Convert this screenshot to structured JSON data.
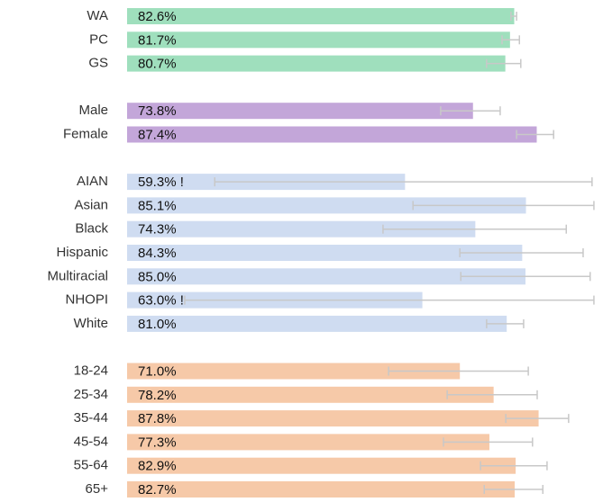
{
  "chart_data": {
    "type": "bar",
    "orientation": "horizontal",
    "xlim": [
      0,
      100
    ],
    "series": [
      {
        "color": "#9fdfbd",
        "categories": [
          "WA",
          "PC",
          "GS"
        ],
        "values": [
          82.6,
          81.7,
          80.7
        ],
        "value_labels": [
          "82.6%",
          "81.7%",
          "80.7%"
        ],
        "ci_low": [
          81.9,
          80.0,
          76.7
        ],
        "ci_high": [
          83.1,
          83.7,
          84.0
        ]
      },
      {
        "color": "#c3a6d9",
        "categories": [
          "Male",
          "Female"
        ],
        "values": [
          73.8,
          87.4
        ],
        "value_labels": [
          "73.8%",
          "87.4%"
        ],
        "ci_low": [
          66.9,
          83.1
        ],
        "ci_high": [
          79.6,
          91.0
        ]
      },
      {
        "color": "#cfdcf1",
        "categories": [
          "AIAN",
          "Asian",
          "Black",
          "Hispanic",
          "Multiracial",
          "NHOPI",
          "White"
        ],
        "values": [
          59.3,
          85.1,
          74.3,
          84.3,
          85.0,
          63.0,
          81.0
        ],
        "value_labels": [
          "59.3% !",
          "85.1%",
          "74.3%",
          "84.3%",
          "85.0%",
          "63.0% !",
          "81.0%"
        ],
        "ci_low": [
          18.7,
          61.0,
          54.6,
          71.0,
          71.2,
          12.3,
          76.7
        ],
        "ci_high": [
          99.2,
          99.6,
          93.7,
          97.3,
          98.8,
          99.6,
          84.6
        ]
      },
      {
        "color": "#f6c9a8",
        "categories": [
          "18-24",
          "25-34",
          "35-44",
          "45-54",
          "55-64",
          "65+"
        ],
        "values": [
          71.0,
          78.2,
          87.8,
          77.3,
          82.9,
          82.7
        ],
        "value_labels": [
          "71.0%",
          "78.2%",
          "87.8%",
          "77.3%",
          "82.9%",
          "82.7%"
        ],
        "ci_low": [
          55.8,
          68.3,
          80.8,
          67.5,
          75.4,
          76.2
        ],
        "ci_high": [
          85.6,
          87.5,
          94.2,
          86.5,
          89.6,
          88.7
        ]
      }
    ]
  }
}
